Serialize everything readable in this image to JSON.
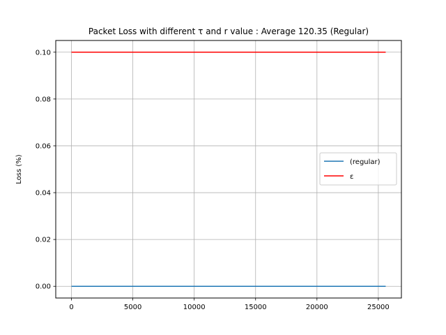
{
  "chart_data": {
    "type": "line",
    "title": "Packet Loss with different τ and r value : Average 120.35 (Regular)",
    "xlabel": "",
    "ylabel": "Loss (%)",
    "xlim": [
      -1280,
      26880
    ],
    "ylim": [
      -0.005,
      0.105
    ],
    "xticks": [
      0,
      5000,
      10000,
      15000,
      20000,
      25000
    ],
    "xtick_labels": [
      "0",
      "5000",
      "10000",
      "15000",
      "20000",
      "25000"
    ],
    "yticks": [
      0.0,
      0.02,
      0.04,
      0.06,
      0.08,
      0.1
    ],
    "ytick_labels": [
      "0.00",
      "0.02",
      "0.04",
      "0.06",
      "0.08",
      "0.10"
    ],
    "grid": true,
    "legend_position": "center-right",
    "series": [
      {
        "name": "(regular)",
        "color": "#1f77b4",
        "x": [
          0,
          25600
        ],
        "y": [
          0.0,
          0.0
        ]
      },
      {
        "name": "ε",
        "color": "#ff0000",
        "x": [
          0,
          25600
        ],
        "y": [
          0.1,
          0.1
        ]
      }
    ]
  }
}
